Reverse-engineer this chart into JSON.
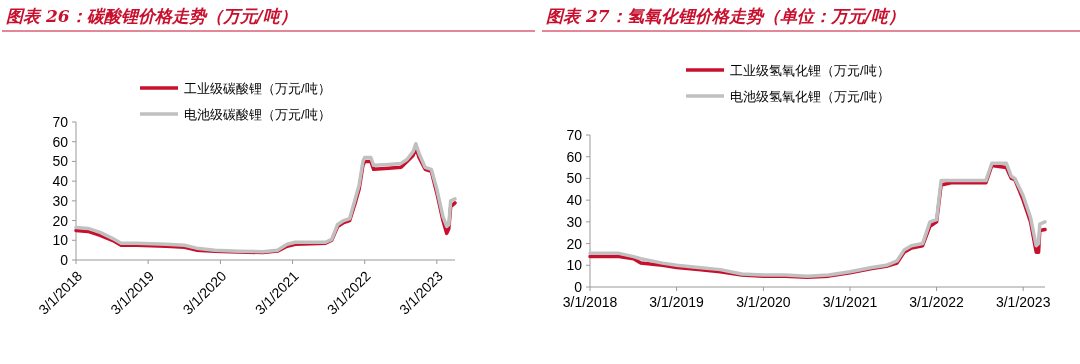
{
  "chart_data": [
    {
      "type": "line",
      "title": "图表 26：碳酸锂价格走势（万元/吨）",
      "legend": "top",
      "xlim": [
        "2018-03-01",
        "2023-06-01"
      ],
      "xticks": [
        {
          "value": "2018-03-01",
          "label": "3/1/2018"
        },
        {
          "value": "2019-03-01",
          "label": "3/1/2019"
        },
        {
          "value": "2020-03-01",
          "label": "3/1/2020"
        },
        {
          "value": "2021-03-01",
          "label": "3/1/2021"
        },
        {
          "value": "2022-03-01",
          "label": "3/1/2022"
        },
        {
          "value": "2023-03-01",
          "label": "3/1/2023"
        }
      ],
      "ylim": [
        0,
        70
      ],
      "yticks": [
        0,
        10,
        20,
        30,
        40,
        50,
        60,
        70
      ],
      "series": [
        {
          "name": "工业级碳酸锂（万元/吨）",
          "color": "#c8102e",
          "x": [
            "2018-03-01",
            "2018-05-01",
            "2018-07-01",
            "2018-09-01",
            "2018-10-15",
            "2019-01-01",
            "2019-06-01",
            "2019-09-01",
            "2019-11-01",
            "2020-02-01",
            "2020-06-01",
            "2020-10-01",
            "2020-12-15",
            "2021-02-01",
            "2021-03-15",
            "2021-08-15",
            "2021-09-15",
            "2021-10-15",
            "2021-11-15",
            "2021-12-15",
            "2022-01-15",
            "2022-02-01",
            "2022-02-20",
            "2022-03-01",
            "2022-04-01",
            "2022-04-15",
            "2022-07-01",
            "2022-09-01",
            "2022-10-01",
            "2022-11-01",
            "2022-11-15",
            "2022-12-01",
            "2023-01-01",
            "2023-02-01",
            "2023-03-01",
            "2023-04-01",
            "2023-04-20",
            "2023-05-01",
            "2023-05-10",
            "2023-06-01"
          ],
          "values": [
            15,
            14.5,
            12.5,
            10,
            7.5,
            7.5,
            7,
            6.5,
            5,
            4.5,
            4,
            3.8,
            4.5,
            7,
            8,
            8.5,
            10,
            17,
            19,
            20,
            30,
            36,
            48,
            50,
            50,
            46,
            46.5,
            47,
            50,
            53,
            57,
            52,
            46,
            45,
            34,
            20,
            13.5,
            16,
            27,
            29
          ]
        },
        {
          "name": "电池级碳酸锂（万元/吨）",
          "color": "#c0c0c0",
          "x": [
            "2018-03-01",
            "2018-05-01",
            "2018-07-01",
            "2018-09-01",
            "2018-10-15",
            "2019-01-01",
            "2019-06-01",
            "2019-09-01",
            "2019-11-01",
            "2020-02-01",
            "2020-06-01",
            "2020-10-01",
            "2020-12-15",
            "2021-02-01",
            "2021-03-15",
            "2021-08-15",
            "2021-09-15",
            "2021-10-15",
            "2021-11-15",
            "2021-12-15",
            "2022-01-15",
            "2022-02-01",
            "2022-02-20",
            "2022-03-01",
            "2022-04-01",
            "2022-04-15",
            "2022-07-01",
            "2022-09-01",
            "2022-10-01",
            "2022-11-01",
            "2022-11-15",
            "2022-12-01",
            "2023-01-01",
            "2023-02-01",
            "2023-03-01",
            "2023-04-01",
            "2023-04-20",
            "2023-05-01",
            "2023-05-10",
            "2023-06-01"
          ],
          "values": [
            16.5,
            16,
            14,
            11,
            8.5,
            8.5,
            8,
            7.5,
            6,
            5,
            4.5,
            4.2,
            5,
            8,
            9,
            9,
            10.5,
            18,
            20,
            21,
            32,
            38,
            50,
            52,
            52,
            48,
            48.5,
            49,
            51,
            55,
            59,
            54,
            47,
            46,
            36,
            22,
            17,
            18,
            30,
            31
          ]
        }
      ]
    },
    {
      "type": "line",
      "title": "图表 27：氢氧化锂价格走势（单位：万元/吨）",
      "legend": "top",
      "xlim": [
        "2018-03-01",
        "2023-06-01"
      ],
      "xticks": [
        {
          "value": "2018-03-01",
          "label": "3/1/2018"
        },
        {
          "value": "2019-03-01",
          "label": "3/1/2019"
        },
        {
          "value": "2020-03-01",
          "label": "3/1/2020"
        },
        {
          "value": "2021-03-01",
          "label": "3/1/2021"
        },
        {
          "value": "2022-03-01",
          "label": "3/1/2022"
        },
        {
          "value": "2023-03-01",
          "label": "3/1/2023"
        }
      ],
      "ylim": [
        0,
        70
      ],
      "yticks": [
        0,
        10,
        20,
        30,
        40,
        50,
        60,
        70
      ],
      "series": [
        {
          "name": "工业级氢氧化锂（万元/吨）",
          "color": "#c8102e",
          "x": [
            "2018-03-01",
            "2018-07-01",
            "2018-09-01",
            "2018-10-01",
            "2019-01-01",
            "2019-03-01",
            "2019-06-01",
            "2019-09-01",
            "2019-12-01",
            "2020-03-01",
            "2020-06-01",
            "2020-09-01",
            "2020-12-01",
            "2021-03-01",
            "2021-06-01",
            "2021-08-01",
            "2021-09-15",
            "2021-10-15",
            "2021-11-15",
            "2022-01-01",
            "2022-02-01",
            "2022-03-01",
            "2022-03-20",
            "2022-05-01",
            "2022-09-25",
            "2022-10-20",
            "2022-12-20",
            "2023-01-10",
            "2023-01-25",
            "2023-03-01",
            "2023-04-01",
            "2023-04-25",
            "2023-05-05",
            "2023-05-10",
            "2023-06-01"
          ],
          "values": [
            14,
            14,
            13,
            11,
            10,
            9,
            8,
            7,
            5.5,
            5,
            5,
            4.5,
            5,
            6.5,
            8.5,
            9.5,
            11,
            16,
            18,
            19,
            28,
            30,
            47,
            48,
            48,
            56,
            55,
            50,
            49.5,
            40,
            30,
            16,
            16,
            26,
            26.5
          ]
        },
        {
          "name": "电池级氢氧化锂（万元/吨）",
          "color": "#c0c0c0",
          "x": [
            "2018-03-01",
            "2018-07-01",
            "2018-09-01",
            "2018-10-01",
            "2019-01-01",
            "2019-03-01",
            "2019-06-01",
            "2019-09-01",
            "2019-12-01",
            "2020-03-01",
            "2020-06-01",
            "2020-09-01",
            "2020-12-01",
            "2021-03-01",
            "2021-06-01",
            "2021-08-01",
            "2021-09-15",
            "2021-10-15",
            "2021-11-15",
            "2022-01-01",
            "2022-02-01",
            "2022-03-01",
            "2022-03-20",
            "2022-05-01",
            "2022-09-25",
            "2022-10-20",
            "2022-12-20",
            "2023-01-10",
            "2023-01-25",
            "2023-03-01",
            "2023-04-01",
            "2023-04-25",
            "2023-05-05",
            "2023-05-10",
            "2023-06-01"
          ],
          "values": [
            15.5,
            15.5,
            14,
            13,
            11,
            10,
            9,
            8,
            6,
            5.5,
            5.5,
            5,
            5.5,
            7,
            9,
            10,
            12,
            17,
            19,
            20,
            30,
            31,
            49,
            49,
            49,
            57,
            57,
            51,
            50,
            42,
            32,
            19,
            20,
            29,
            30
          ]
        }
      ]
    }
  ]
}
